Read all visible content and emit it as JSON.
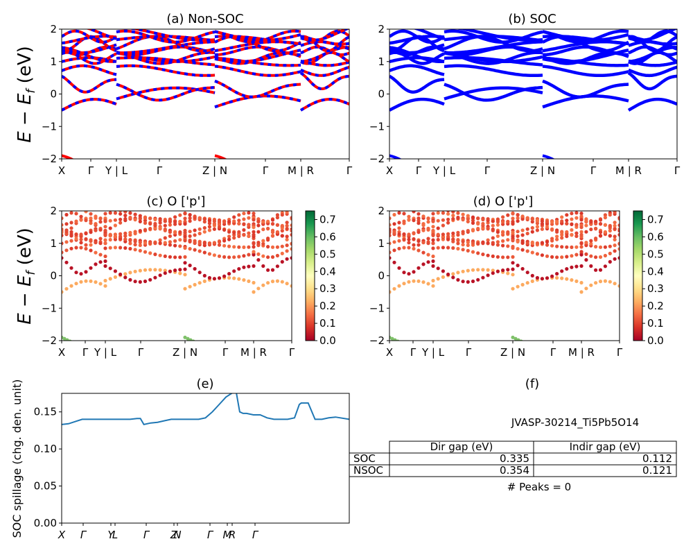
{
  "chart_data": [
    {
      "type": "line",
      "title": "(a) Non-SOC",
      "ylabel": "E − E_f (eV)",
      "ylim": [
        -2,
        2
      ],
      "yticks": [
        "−2",
        "−1",
        "0",
        "1",
        "2"
      ],
      "x_tick_labels": [
        "X",
        "Γ",
        "Y | L",
        "Γ",
        "Z | N",
        "Γ",
        "M | R",
        "Γ"
      ],
      "series": [
        {
          "name": "",
          "color": "#ff0000",
          "x": [
            0,
            0.5,
            1,
            1.5,
            2,
            2.5,
            3
          ],
          "y": [
            -0.5,
            -0.35,
            -0.25,
            -0.25,
            -0.2,
            -0.15,
            -0.1
          ]
        }
      ],
      "grid": false
    },
    {
      "type": "line",
      "title": "(b) SOC",
      "ylim": [
        -2,
        2
      ],
      "yticks": [
        "−2",
        "−1",
        "0",
        "1",
        "2"
      ],
      "x_tick_labels": [
        "X",
        "Γ",
        "Y | L",
        "Γ",
        "Z | N",
        "Γ",
        "M | R",
        "Γ"
      ],
      "series": [
        {
          "name": "",
          "color": "#0000ff",
          "x": [
            0,
            0.5,
            1,
            1.5,
            2,
            2.5,
            3
          ],
          "y": [
            -0.5,
            -0.35,
            -0.25,
            -0.25,
            -0.2,
            -0.15,
            -0.1
          ]
        }
      ],
      "grid": false
    },
    {
      "type": "scatter",
      "title": "(c)  O ['p']",
      "ylabel": "E − E_f (eV)",
      "ylim": [
        -2,
        2
      ],
      "yticks": [
        "−2",
        "−1",
        "0",
        "1",
        "2"
      ],
      "x_tick_labels": [
        "X",
        "Γ",
        "Y | L",
        "Γ",
        "Z | N",
        "Γ",
        "M | R",
        "Γ"
      ],
      "colorbar": {
        "min": 0.0,
        "max": 0.75,
        "ticks": [
          "0.0",
          "0.1",
          "0.2",
          "0.3",
          "0.4",
          "0.5",
          "0.6",
          "0.7"
        ]
      },
      "series": [
        {
          "name": "",
          "x": [
            0,
            0.5,
            1,
            1.5,
            2
          ],
          "y": [
            -0.5,
            -0.3,
            -0.2,
            -0.25,
            -0.2
          ],
          "c": [
            0.18,
            0.18,
            0.18,
            0.18,
            0.18
          ]
        }
      ],
      "grid": false
    },
    {
      "type": "scatter",
      "title": "(d) O ['p']",
      "ylim": [
        -2,
        2
      ],
      "yticks": [
        "−2",
        "−1",
        "0",
        "1",
        "2"
      ],
      "x_tick_labels": [
        "X",
        "Γ",
        "Y | L",
        "Γ",
        "Z | N",
        "Γ",
        "M | R",
        "Γ"
      ],
      "colorbar": {
        "min": 0.0,
        "max": 0.75,
        "ticks": [
          "0.0",
          "0.1",
          "0.2",
          "0.3",
          "0.4",
          "0.5",
          "0.6",
          "0.7"
        ]
      },
      "series": [
        {
          "name": "",
          "x": [
            0,
            0.5,
            1,
            1.5,
            2
          ],
          "y": [
            -0.5,
            -0.3,
            -0.2,
            -0.25,
            -0.2
          ],
          "c": [
            0.18,
            0.18,
            0.18,
            0.18,
            0.18
          ]
        }
      ],
      "grid": false
    },
    {
      "type": "line",
      "title": "(e)",
      "ylabel": "SOC spillage (chg. den. unit)",
      "ylim": [
        0,
        0.175
      ],
      "yticks": [
        "0.00",
        "0.05",
        "0.10",
        "0.15"
      ],
      "x_tick_labels": [
        "X",
        "Γ",
        "Y",
        "L",
        "Γ",
        "Z",
        "N",
        "Γ",
        "M",
        "R",
        "Γ"
      ],
      "series": [
        {
          "name": "",
          "color": "#1f77b4",
          "x": [
            0,
            10,
            20,
            30,
            40,
            50,
            60,
            70,
            80,
            90,
            100,
            110,
            115,
            120,
            130,
            140,
            150,
            160,
            170,
            175,
            180,
            185,
            190,
            195,
            200,
            210,
            220,
            230,
            240,
            250,
            255,
            260,
            265,
            270,
            280,
            290,
            300,
            310,
            320,
            330,
            340,
            347,
            350,
            355,
            360,
            370,
            380,
            390,
            400,
            420
          ],
          "y": [
            0.133,
            0.134,
            0.137,
            0.14,
            0.14,
            0.14,
            0.14,
            0.14,
            0.14,
            0.14,
            0.14,
            0.141,
            0.141,
            0.133,
            0.135,
            0.136,
            0.138,
            0.14,
            0.14,
            0.14,
            0.14,
            0.14,
            0.14,
            0.14,
            0.14,
            0.142,
            0.15,
            0.16,
            0.17,
            0.176,
            0.176,
            0.15,
            0.148,
            0.148,
            0.146,
            0.146,
            0.142,
            0.14,
            0.14,
            0.14,
            0.142,
            0.16,
            0.162,
            0.162,
            0.162,
            0.14,
            0.14,
            0.142,
            0.143,
            0.14
          ]
        }
      ],
      "grid": false
    }
  ],
  "panel_f": {
    "title": "(f)",
    "jid": "JVASP-30214_Ti5Pb5O14",
    "table": {
      "headers": [
        "Dir gap (eV)",
        "Indir gap (eV)"
      ],
      "rows": [
        {
          "label": "SOC",
          "dir": "0.335",
          "indir": "0.112"
        },
        {
          "label": "NSOC",
          "dir": "0.354",
          "indir": "0.121"
        }
      ]
    },
    "peaks": "# Peaks = 0"
  }
}
